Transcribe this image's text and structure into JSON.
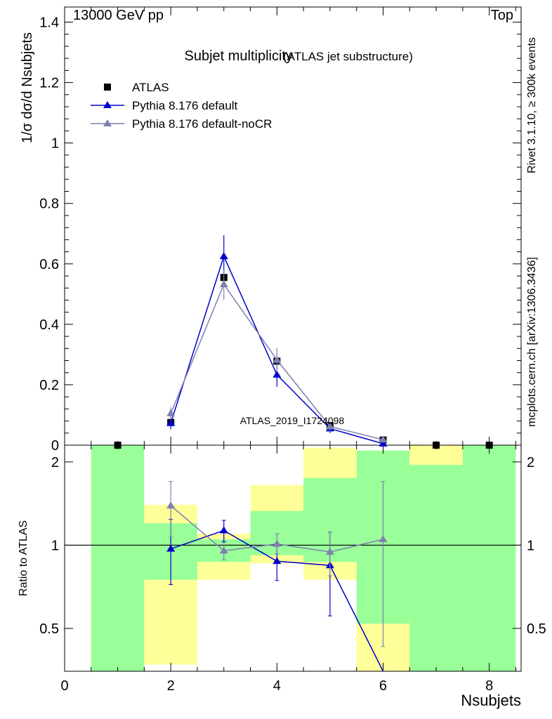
{
  "header": {
    "energy_label": "13000 GeV pp",
    "process_label": "Top"
  },
  "side": {
    "rivet_label": "Rivet 3.1.10, ≥ 300k events",
    "mcplots_label": "mcplots.cern.ch [arXiv:1306.3436]"
  },
  "colors": {
    "data": "#000000",
    "pythia_default": "#0000cc",
    "pythia_nocr": "#7f7fb0",
    "band_inner": "#99ff99",
    "band_outer": "#ffff99"
  },
  "chart_data": [
    {
      "type": "scatter",
      "title": "Subjet multiplicity",
      "subtitle": "(ATLAS jet substructure)",
      "analysis_label": "ATLAS_2019_I1724098",
      "ylabel": "1/σ dσ/d Nsubjets",
      "xlim": [
        0,
        8.6
      ],
      "ylim": [
        0,
        1.45
      ],
      "yticks": [
        "0",
        "0.2",
        "0.4",
        "0.6",
        "0.8",
        "1",
        "1.2",
        "1.4"
      ],
      "ytick_values": [
        0,
        0.2,
        0.4,
        0.6,
        0.8,
        1.0,
        1.2,
        1.4
      ],
      "legend": [
        "ATLAS",
        "Pythia 8.176 default",
        "Pythia 8.176 default-noCR"
      ],
      "legend_position": "top-left",
      "series": [
        {
          "name": "ATLAS",
          "style": "square",
          "x": [
            1,
            2,
            3,
            4,
            5,
            6,
            7,
            8
          ],
          "y": [
            0.0,
            0.075,
            0.555,
            0.278,
            0.065,
            0.017,
            0.0,
            0.0
          ]
        },
        {
          "name": "Pythia 8.176 default",
          "style": "triangle-line",
          "x": [
            2,
            3,
            4,
            5,
            6
          ],
          "y": [
            0.073,
            0.625,
            0.233,
            0.055,
            0.005
          ],
          "err": [
            0.02,
            0.07,
            0.04,
            0.015,
            0.003
          ]
        },
        {
          "name": "Pythia 8.176 default-noCR",
          "style": "triangle-line",
          "x": [
            2,
            3,
            4,
            5,
            6
          ],
          "y": [
            0.105,
            0.532,
            0.282,
            0.062,
            0.018
          ],
          "err": [
            0.02,
            0.05,
            0.04,
            0.015,
            0.008
          ]
        }
      ]
    },
    {
      "type": "scatter",
      "title": "",
      "xlabel": "Nsubjets",
      "ylabel": "Ratio to ATLAS",
      "xlim": [
        0,
        8.6
      ],
      "ylim": [
        0.35,
        2.3
      ],
      "yscale": "log",
      "xticks": [
        "0",
        "2",
        "4",
        "6",
        "8"
      ],
      "xtick_values": [
        0,
        2,
        4,
        6,
        8
      ],
      "yticks": [
        "0.5",
        "1",
        "2"
      ],
      "ytick_values": [
        0.5,
        1,
        2
      ],
      "reference_line": 1,
      "bands": [
        {
          "x": [
            0.5,
            1.5
          ],
          "outer": [
            0.35,
            2.3
          ],
          "inner": [
            0.35,
            2.3
          ]
        },
        {
          "x": [
            1.5,
            2.5
          ],
          "outer": [
            0.37,
            1.4
          ],
          "inner": [
            0.75,
            1.2
          ]
        },
        {
          "x": [
            2.5,
            3.5
          ],
          "outer": [
            0.75,
            1.1
          ],
          "inner": [
            0.87,
            1.05
          ]
        },
        {
          "x": [
            3.5,
            4.5
          ],
          "outer": [
            0.86,
            1.65
          ],
          "inner": [
            0.92,
            1.33
          ]
        },
        {
          "x": [
            4.5,
            5.5
          ],
          "outer": [
            0.75,
            2.25
          ],
          "inner": [
            0.87,
            1.75
          ]
        },
        {
          "x": [
            5.5,
            6.5
          ],
          "outer": [
            0.35,
            2.2
          ],
          "inner": [
            0.52,
            2.2
          ]
        },
        {
          "x": [
            6.5,
            7.5
          ],
          "outer": [
            0.35,
            2.3
          ],
          "inner": [
            0.35,
            1.95
          ]
        },
        {
          "x": [
            7.5,
            8.5
          ],
          "outer": [
            0.35,
            2.3
          ],
          "inner": [
            0.35,
            2.3
          ]
        }
      ],
      "series": [
        {
          "name": "Pythia 8.176 default",
          "x": [
            2,
            3,
            4,
            5,
            6
          ],
          "y": [
            0.97,
            1.13,
            0.875,
            0.845,
            0.35
          ],
          "err_lo": [
            0.25,
            0.1,
            0.13,
            0.29,
            0.0
          ],
          "err_hi": [
            0.27,
            0.1,
            0.12,
            0.27,
            0.0
          ]
        },
        {
          "name": "Pythia 8.176 default-noCR",
          "x": [
            2,
            3,
            4,
            5,
            6
          ],
          "y": [
            1.39,
            0.955,
            1.01,
            0.945,
            1.05
          ],
          "err_lo": [
            0.32,
            0.07,
            0.08,
            0.17,
            0.62
          ],
          "err_hi": [
            0.31,
            0.07,
            0.09,
            0.17,
            0.65
          ]
        }
      ]
    }
  ]
}
